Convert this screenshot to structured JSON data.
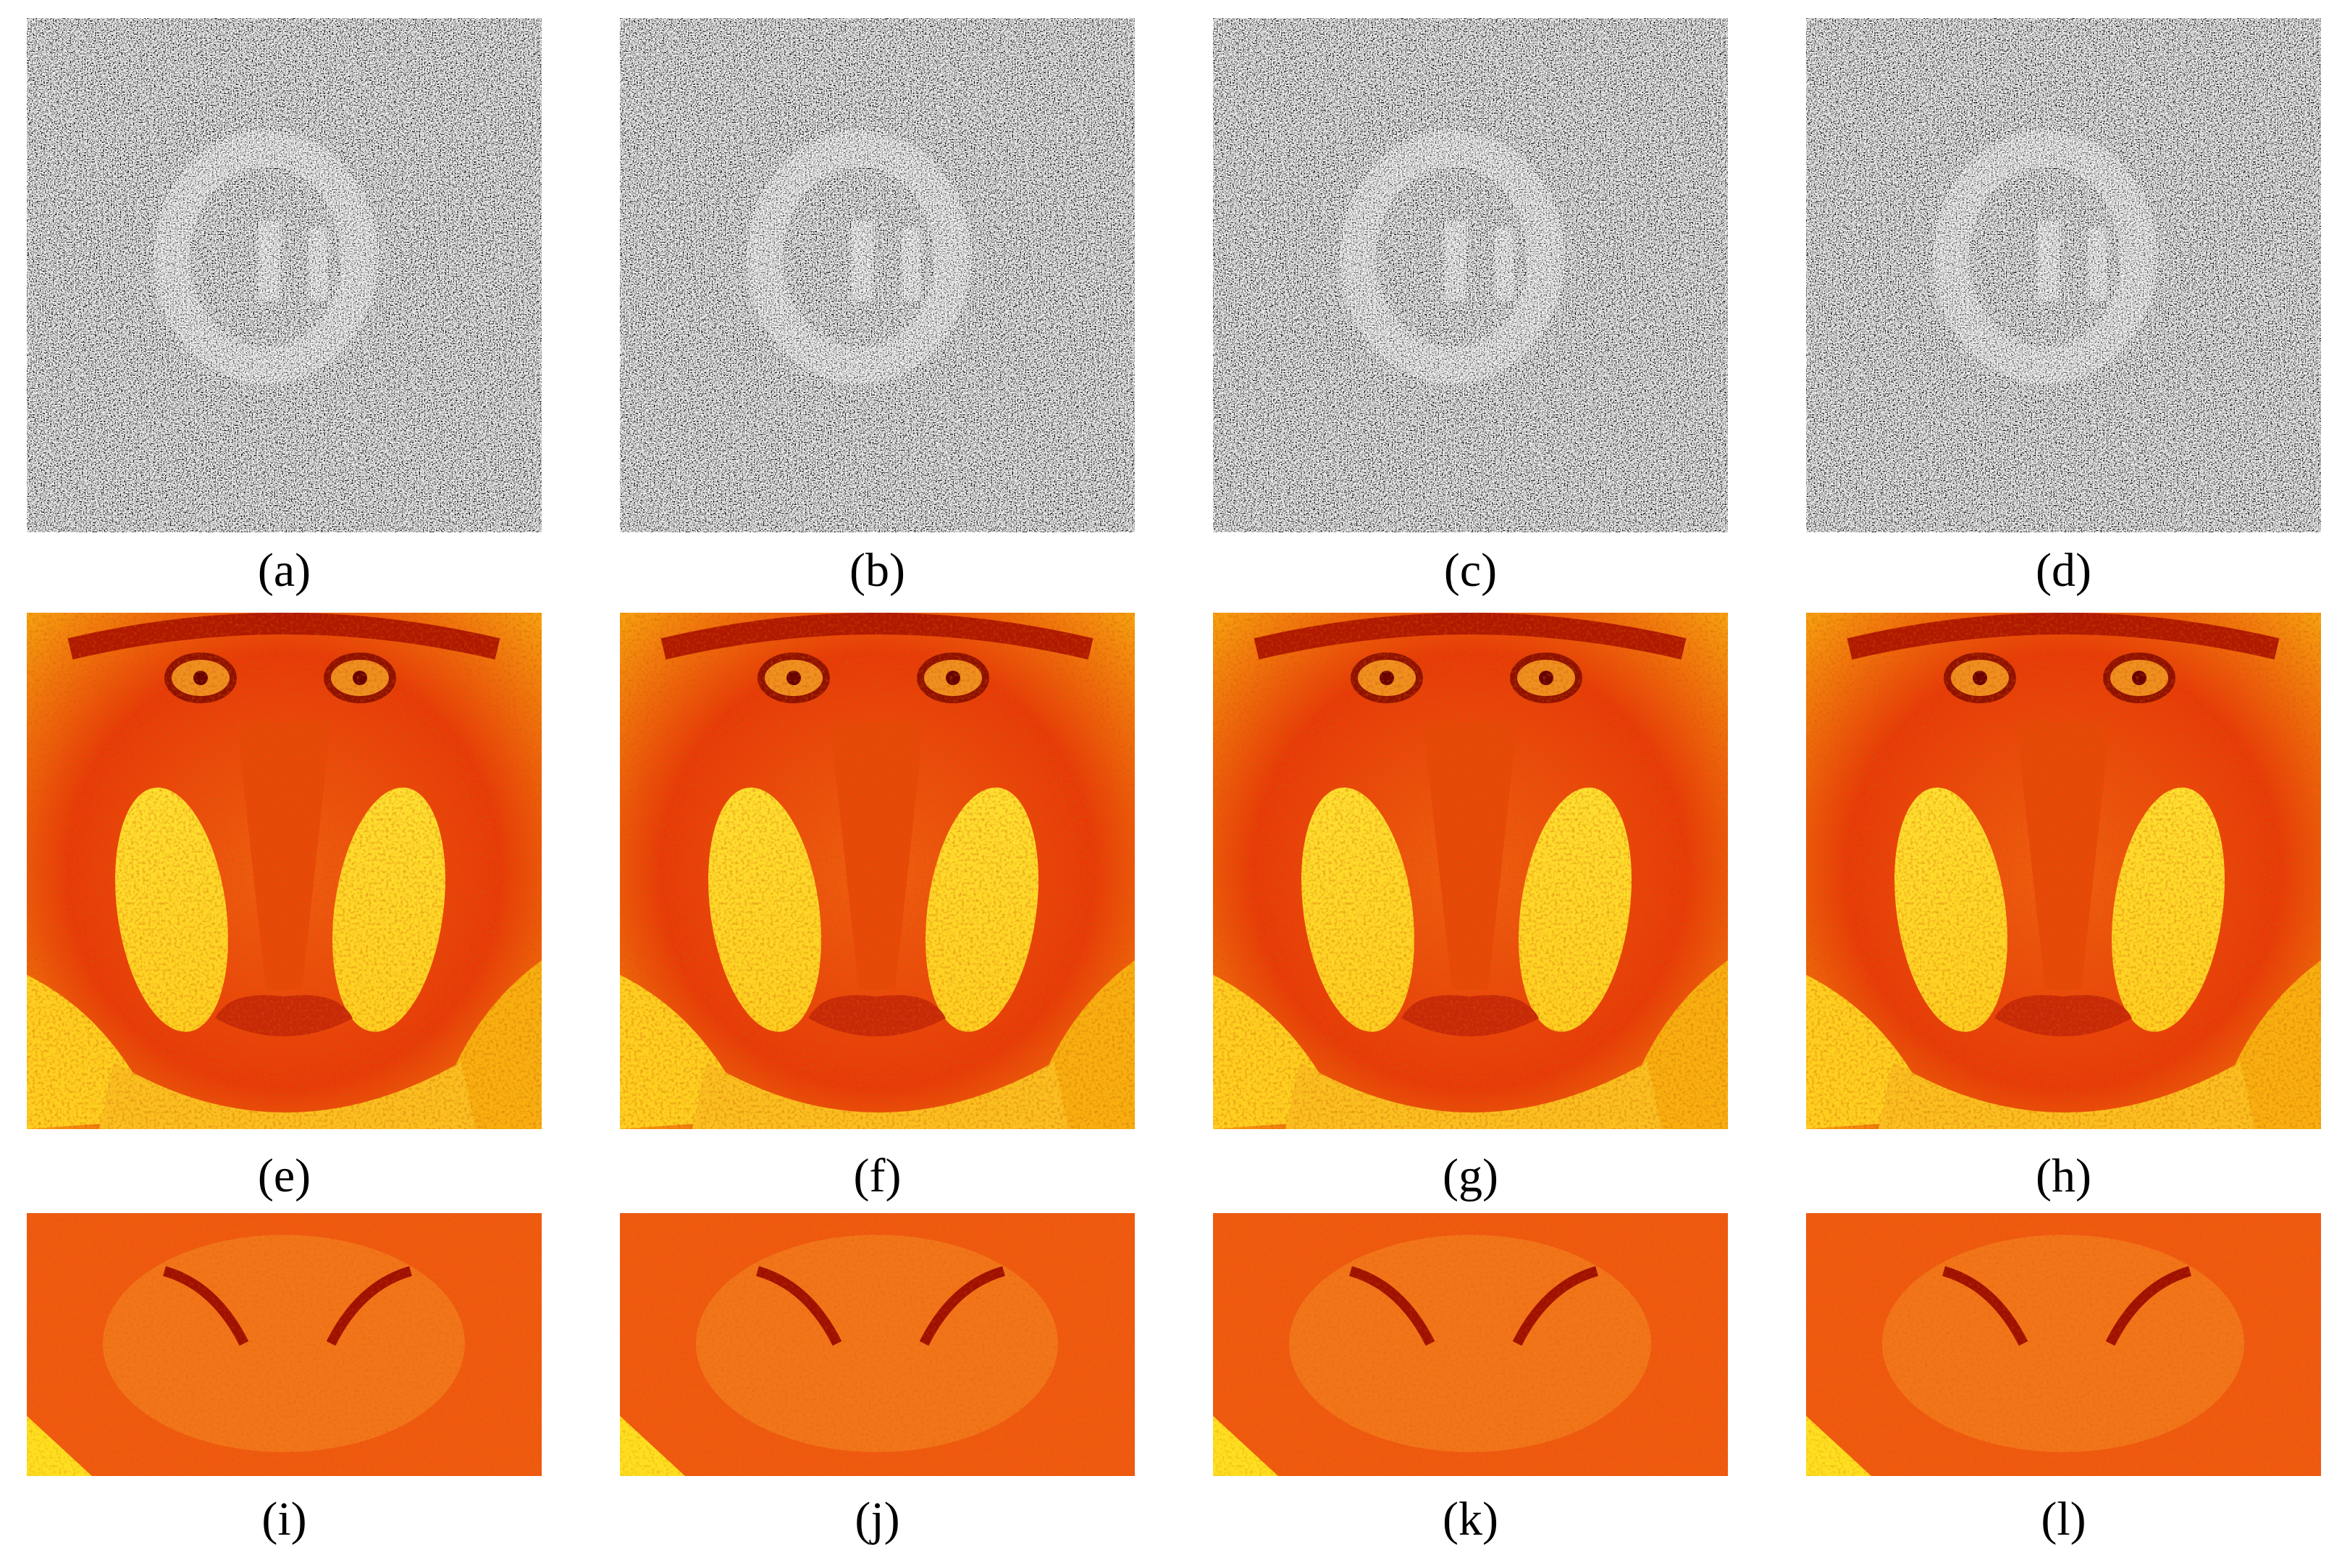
{
  "panels": [
    "(a)",
    "(b)",
    "(c)",
    "(d)",
    "(e)",
    "(f)",
    "(g)",
    "(h)",
    "(i)",
    "(j)",
    "(k)",
    "(l)"
  ]
}
